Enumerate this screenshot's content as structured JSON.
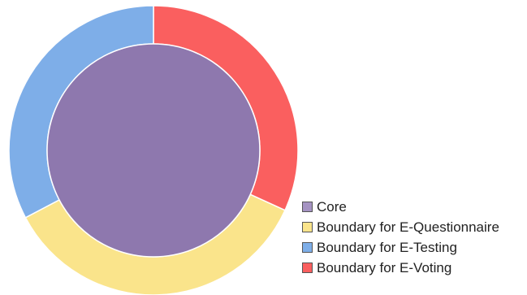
{
  "chart_data": {
    "type": "pie",
    "title": "",
    "legend_position": "bottom-right",
    "outer_ring": {
      "slices": [
        {
          "label": "Boundary for E-Voting",
          "value": 31.8,
          "color": "#fa5f5f"
        },
        {
          "label": "Boundary for E-Questionnaire",
          "value": 35.5,
          "color": "#fae48b"
        },
        {
          "label": "Boundary for E-Testing",
          "value": 32.7,
          "color": "#7eaee8"
        }
      ]
    },
    "inner": {
      "label": "Core",
      "value": 100,
      "color": "#8e78ae"
    }
  },
  "legend": {
    "items": [
      {
        "label": "Core",
        "color": "#a593c2"
      },
      {
        "label": "Boundary for E-Questionnaire",
        "color": "#fae48b"
      },
      {
        "label": "Boundary for E-Testing",
        "color": "#7eaee8"
      },
      {
        "label": "Boundary for E-Voting",
        "color": "#fa5f5f"
      }
    ]
  }
}
